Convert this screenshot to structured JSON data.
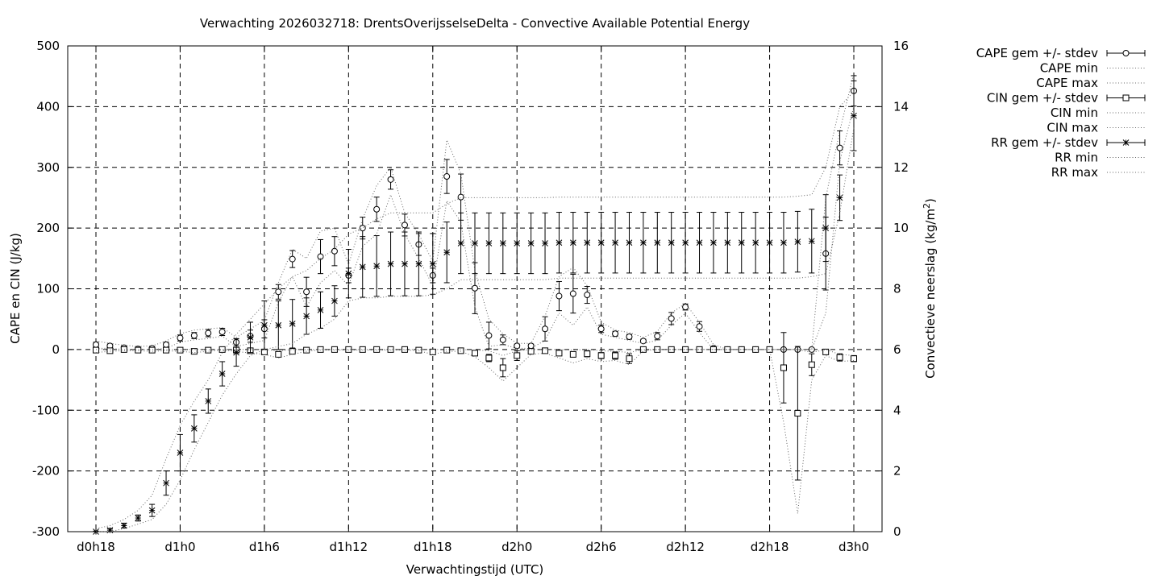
{
  "chart_data": {
    "type": "line",
    "title": "Verwachting 2026032718: DrentsOverijsselseDelta - Convective Available Potential Energy",
    "xlabel": "Verwachtingstijd (UTC)",
    "ylabel": "CAPE en CIN (J/kg)",
    "y2label_main": "Convectieve neerslag (kg/m",
    "y2label_sup": "2",
    "y2label_end": ")",
    "xlim": [
      18,
      72
    ],
    "ylim": [
      -300,
      500
    ],
    "y2lim": [
      0,
      16
    ],
    "grid": true,
    "legend_position": "top-right",
    "x_ticks": [
      {
        "x": 18,
        "label": "d0h18"
      },
      {
        "x": 24,
        "label": "d1h0"
      },
      {
        "x": 30,
        "label": "d1h6"
      },
      {
        "x": 36,
        "label": "d1h12"
      },
      {
        "x": 42,
        "label": "d1h18"
      },
      {
        "x": 48,
        "label": "d2h0"
      },
      {
        "x": 54,
        "label": "d2h6"
      },
      {
        "x": 60,
        "label": "d2h12"
      },
      {
        "x": 66,
        "label": "d2h18"
      },
      {
        "x": 72,
        "label": "d3h0"
      }
    ],
    "y_ticks": [
      500,
      400,
      300,
      200,
      100,
      0,
      -100,
      -200,
      -300
    ],
    "y2_ticks": [
      16,
      14,
      12,
      10,
      8,
      6,
      4,
      2,
      0
    ],
    "x": [
      18,
      19,
      20,
      21,
      22,
      23,
      24,
      25,
      26,
      27,
      28,
      29,
      30,
      31,
      32,
      33,
      34,
      35,
      36,
      37,
      38,
      39,
      40,
      41,
      42,
      43,
      44,
      45,
      46,
      47,
      48,
      49,
      50,
      51,
      52,
      53,
      54,
      55,
      56,
      57,
      58,
      59,
      60,
      61,
      62,
      63,
      64,
      65,
      66,
      67,
      68,
      69,
      70,
      71,
      72
    ],
    "series": [
      {
        "name": "CAPE gem +/- stdev",
        "axis": "y",
        "marker": "circle",
        "values": [
          8,
          6,
          3,
          1,
          2,
          8,
          19,
          23,
          27,
          29,
          12,
          22,
          34,
          95,
          149,
          95,
          153,
          162,
          122,
          200,
          231,
          280,
          205,
          173,
          122,
          285,
          251,
          101,
          23,
          16,
          6,
          6,
          34,
          88,
          92,
          90,
          34,
          26,
          21,
          14,
          22,
          51,
          70,
          38,
          2,
          0,
          0,
          0,
          0,
          0,
          0,
          0,
          158,
          332,
          426
        ],
        "stdev": [
          4,
          3,
          3,
          3,
          3,
          4,
          5,
          5,
          6,
          6,
          6,
          10,
          15,
          12,
          14,
          24,
          28,
          24,
          12,
          18,
          20,
          16,
          18,
          18,
          12,
          28,
          38,
          42,
          22,
          8,
          3,
          3,
          20,
          24,
          32,
          14,
          6,
          4,
          4,
          3,
          6,
          10,
          5,
          8,
          3,
          2,
          0,
          0,
          0,
          0,
          0,
          0,
          60,
          28,
          25
        ]
      },
      {
        "name": "CAPE min",
        "axis": "y",
        "style": "dotted",
        "values": [
          2,
          2,
          0,
          0,
          0,
          2,
          12,
          16,
          18,
          22,
          5,
          10,
          15,
          78,
          120,
          70,
          110,
          130,
          105,
          170,
          190,
          255,
          190,
          150,
          105,
          245,
          210,
          70,
          5,
          8,
          2,
          2,
          15,
          60,
          40,
          70,
          25,
          20,
          15,
          10,
          15,
          40,
          60,
          28,
          0,
          0,
          0,
          0,
          0,
          0,
          0,
          0,
          60,
          310,
          400
        ]
      },
      {
        "name": "CAPE max",
        "axis": "y",
        "style": "dotted",
        "values": [
          14,
          10,
          7,
          5,
          6,
          14,
          26,
          32,
          34,
          36,
          20,
          34,
          48,
          110,
          165,
          150,
          195,
          200,
          140,
          215,
          270,
          300,
          225,
          190,
          145,
          345,
          290,
          130,
          50,
          26,
          10,
          10,
          55,
          120,
          135,
          105,
          45,
          32,
          28,
          20,
          30,
          60,
          76,
          45,
          8,
          0,
          0,
          0,
          0,
          0,
          0,
          0,
          250,
          360,
          455
        ]
      },
      {
        "name": "CIN gem +/- stdev",
        "axis": "y",
        "marker": "square",
        "values": [
          -1,
          -2,
          0,
          -1,
          -1,
          -1,
          -1,
          -3,
          -1,
          0,
          -1,
          -2,
          -4,
          -8,
          -3,
          -1,
          0,
          0,
          0,
          0,
          0,
          0,
          0,
          -1,
          -4,
          -1,
          -2,
          -6,
          -14,
          -30,
          -10,
          -3,
          -2,
          -6,
          -8,
          -7,
          -10,
          -10,
          -15,
          0,
          0,
          0,
          0,
          0,
          0,
          0,
          0,
          0,
          0,
          -30,
          -105,
          -25,
          -4,
          -13,
          -15
        ],
        "stdev": [
          2,
          1,
          1,
          1,
          1,
          1,
          1,
          2,
          1,
          1,
          1,
          2,
          2,
          3,
          2,
          1,
          0,
          0,
          0,
          0,
          0,
          0,
          0,
          1,
          3,
          1,
          1,
          3,
          6,
          15,
          8,
          3,
          2,
          4,
          4,
          5,
          5,
          6,
          8,
          0,
          0,
          0,
          0,
          0,
          0,
          0,
          0,
          0,
          0,
          58,
          110,
          18,
          3,
          6,
          5
        ]
      },
      {
        "name": "CIN min",
        "axis": "y",
        "style": "dotted",
        "values": [
          -5,
          -3,
          -2,
          -2,
          -3,
          -2,
          -3,
          -5,
          -3,
          -1,
          -3,
          -6,
          -8,
          -14,
          -8,
          -3,
          -1,
          -1,
          -1,
          -1,
          -1,
          -1,
          -1,
          -2,
          -8,
          -3,
          -3,
          -12,
          -30,
          -52,
          -30,
          -8,
          -6,
          -14,
          -22,
          -15,
          -20,
          -18,
          -25,
          -2,
          0,
          0,
          0,
          0,
          0,
          0,
          0,
          0,
          0,
          -120,
          -270,
          -50,
          -10,
          -20,
          -18
        ]
      },
      {
        "name": "CIN max",
        "axis": "y",
        "style": "dotted",
        "values": [
          0,
          0,
          0,
          0,
          0,
          0,
          0,
          0,
          0,
          0,
          0,
          0,
          0,
          -2,
          0,
          0,
          0,
          0,
          0,
          0,
          0,
          0,
          0,
          0,
          0,
          0,
          0,
          -1,
          -2,
          -10,
          -2,
          0,
          0,
          0,
          -1,
          0,
          -2,
          -3,
          -5,
          0,
          0,
          0,
          0,
          0,
          0,
          0,
          0,
          0,
          0,
          0,
          0,
          -5,
          0,
          -8,
          -10
        ]
      },
      {
        "name": "RR gem +/- stdev",
        "axis": "y2",
        "marker": "star",
        "values": [
          0.0,
          0.05,
          0.2,
          0.45,
          0.7,
          1.6,
          2.6,
          3.4,
          4.3,
          5.2,
          5.9,
          6.4,
          6.8,
          6.8,
          6.85,
          7.1,
          7.3,
          7.6,
          8.5,
          8.72,
          8.75,
          8.82,
          8.82,
          8.82,
          8.82,
          9.2,
          9.5,
          9.5,
          9.5,
          9.5,
          9.5,
          9.5,
          9.5,
          9.52,
          9.52,
          9.52,
          9.52,
          9.52,
          9.52,
          9.52,
          9.52,
          9.52,
          9.52,
          9.52,
          9.52,
          9.52,
          9.52,
          9.52,
          9.52,
          9.52,
          9.55,
          9.57,
          10.0,
          11.0,
          13.7
        ],
        "stdev": [
          0.02,
          0.05,
          0.08,
          0.1,
          0.2,
          0.4,
          0.6,
          0.45,
          0.4,
          0.4,
          0.45,
          0.5,
          0.8,
          0.8,
          0.8,
          0.6,
          0.6,
          0.5,
          0.8,
          1.0,
          1.0,
          1.05,
          1.05,
          1.05,
          1.0,
          1.0,
          1.0,
          1.0,
          1.0,
          1.0,
          1.0,
          1.0,
          1.0,
          1.0,
          1.0,
          1.0,
          1.0,
          1.0,
          1.0,
          1.0,
          1.0,
          1.0,
          1.0,
          1.0,
          1.0,
          1.0,
          1.0,
          1.0,
          1.0,
          1.0,
          1.0,
          1.05,
          1.1,
          0.75,
          1.15
        ]
      },
      {
        "name": "RR min",
        "axis": "y2",
        "style": "dotted",
        "values": [
          0.0,
          0.0,
          0.1,
          0.25,
          0.4,
          0.9,
          1.7,
          2.7,
          3.6,
          4.5,
          5.2,
          5.8,
          6.0,
          6.1,
          6.2,
          6.5,
          6.7,
          7.0,
          7.6,
          7.7,
          7.7,
          7.75,
          7.75,
          7.75,
          7.8,
          8.0,
          8.3,
          8.3,
          8.3,
          8.3,
          8.3,
          8.3,
          8.3,
          8.35,
          8.35,
          8.35,
          8.35,
          8.35,
          8.35,
          8.35,
          8.35,
          8.35,
          8.35,
          8.35,
          8.35,
          8.35,
          8.35,
          8.35,
          8.35,
          8.35,
          8.35,
          8.4,
          8.5,
          10.5,
          13.3
        ]
      },
      {
        "name": "RR max",
        "axis": "y2",
        "style": "dotted",
        "values": [
          0.1,
          0.2,
          0.4,
          0.7,
          1.2,
          2.4,
          3.5,
          4.3,
          5.0,
          5.9,
          6.5,
          7.0,
          7.5,
          8.0,
          8.4,
          8.6,
          9.0,
          9.3,
          9.8,
          10.0,
          10.3,
          10.5,
          10.5,
          10.5,
          10.5,
          10.8,
          11.0,
          11.0,
          11.0,
          11.0,
          11.0,
          11.0,
          11.0,
          11.02,
          11.02,
          11.02,
          11.02,
          11.02,
          11.02,
          11.02,
          11.02,
          11.02,
          11.02,
          11.02,
          11.02,
          11.02,
          11.02,
          11.02,
          11.02,
          11.02,
          11.05,
          11.1,
          12.0,
          14.0,
          14.5
        ]
      }
    ]
  }
}
